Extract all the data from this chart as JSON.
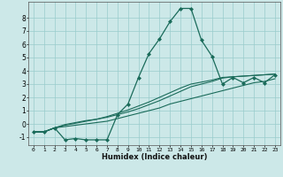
{
  "xlabel": "Humidex (Indice chaleur)",
  "bg_color": "#cce8e8",
  "grid_color": "#99cccc",
  "line_color": "#1a6b5a",
  "xlim": [
    -0.5,
    23.5
  ],
  "ylim": [
    -1.6,
    9.2
  ],
  "xticks": [
    0,
    1,
    2,
    3,
    4,
    5,
    6,
    7,
    8,
    9,
    10,
    11,
    12,
    13,
    14,
    15,
    16,
    17,
    18,
    19,
    20,
    21,
    22,
    23
  ],
  "yticks": [
    -1,
    0,
    1,
    2,
    3,
    4,
    5,
    6,
    7,
    8
  ],
  "series": [
    {
      "x": [
        0,
        1,
        2,
        3,
        4,
        5,
        6,
        7,
        8,
        9,
        10,
        11,
        12,
        13,
        14,
        15,
        16,
        17,
        18,
        19,
        20,
        21,
        22,
        23
      ],
      "y": [
        -0.6,
        -0.6,
        -0.3,
        -1.2,
        -1.1,
        -1.2,
        -1.2,
        -1.2,
        0.7,
        1.5,
        3.5,
        5.3,
        6.4,
        7.7,
        8.7,
        8.7,
        6.3,
        5.1,
        3.0,
        3.5,
        3.1,
        3.5,
        3.1,
        3.7
      ],
      "marker": "D",
      "markersize": 2.0,
      "linewidth": 0.9
    },
    {
      "x": [
        0,
        1,
        2,
        3,
        4,
        5,
        6,
        7,
        8,
        9,
        10,
        11,
        12,
        13,
        14,
        15,
        16,
        17,
        18,
        19,
        20,
        21,
        22,
        23
      ],
      "y": [
        -0.6,
        -0.6,
        -0.3,
        -0.2,
        -0.1,
        0.0,
        0.1,
        0.2,
        0.4,
        0.6,
        0.8,
        1.0,
        1.2,
        1.5,
        1.7,
        1.9,
        2.1,
        2.3,
        2.5,
        2.7,
        2.9,
        3.1,
        3.2,
        3.4
      ],
      "marker": null,
      "linewidth": 0.8
    },
    {
      "x": [
        0,
        1,
        2,
        3,
        4,
        5,
        6,
        7,
        8,
        9,
        10,
        11,
        12,
        13,
        14,
        15,
        16,
        17,
        18,
        19,
        20,
        21,
        22,
        23
      ],
      "y": [
        -0.6,
        -0.6,
        -0.3,
        -0.05,
        0.1,
        0.25,
        0.35,
        0.5,
        0.7,
        0.9,
        1.15,
        1.45,
        1.75,
        2.1,
        2.45,
        2.8,
        3.0,
        3.2,
        3.45,
        3.55,
        3.6,
        3.65,
        3.7,
        3.75
      ],
      "marker": null,
      "linewidth": 0.8
    },
    {
      "x": [
        0,
        1,
        2,
        3,
        4,
        5,
        6,
        7,
        8,
        9,
        10,
        11,
        12,
        13,
        14,
        15,
        16,
        17,
        18,
        19,
        20,
        21,
        22,
        23
      ],
      "y": [
        -0.6,
        -0.6,
        -0.3,
        -0.1,
        0.05,
        0.2,
        0.35,
        0.55,
        0.8,
        1.05,
        1.35,
        1.65,
        2.0,
        2.35,
        2.7,
        3.0,
        3.15,
        3.3,
        3.5,
        3.55,
        3.6,
        3.65,
        3.7,
        3.75
      ],
      "marker": null,
      "linewidth": 0.8
    }
  ]
}
